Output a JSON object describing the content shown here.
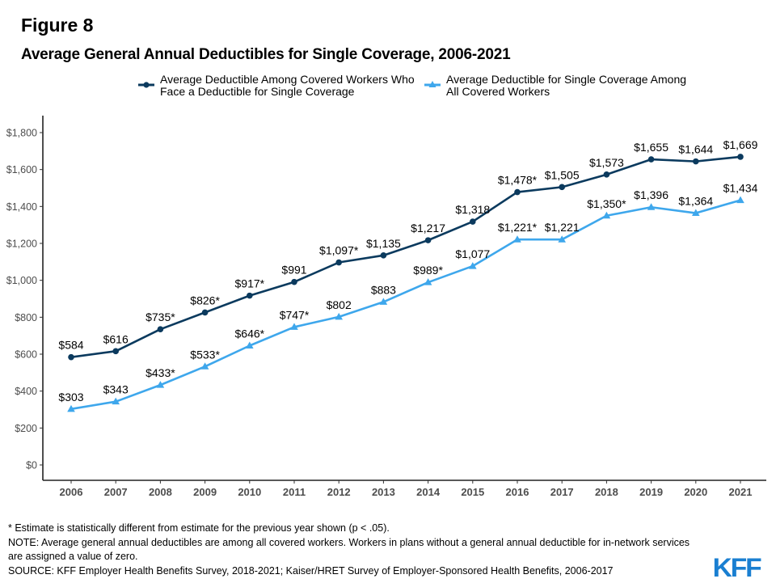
{
  "figure_label": "Figure 8",
  "chart_data": {
    "type": "line",
    "title": "Average General Annual Deductibles for Single Coverage, 2006-2021",
    "xlabel": "",
    "ylabel": "",
    "x": [
      "2006",
      "2007",
      "2008",
      "2009",
      "2010",
      "2011",
      "2012",
      "2013",
      "2014",
      "2015",
      "2016",
      "2017",
      "2018",
      "2019",
      "2020",
      "2021"
    ],
    "ylim": [
      0,
      1800
    ],
    "yticks": [
      0,
      200,
      400,
      600,
      800,
      1000,
      1200,
      1400,
      1600,
      1800
    ],
    "ytick_labels": [
      "$0",
      "$200",
      "$400",
      "$600",
      "$800",
      "$1,000",
      "$1,200",
      "$1,400",
      "$1,600",
      "$1,800"
    ],
    "grid": false,
    "legend_position": "top",
    "series": [
      {
        "name": "Average Deductible Among Covered Workers Who Face a Deductible for Single Coverage",
        "legend_lines": [
          "Average Deductible Among Covered Workers Who",
          "Face a Deductible for Single Coverage"
        ],
        "color": "#0b3a5e",
        "marker": "circle",
        "values": [
          584,
          616,
          735,
          826,
          917,
          991,
          1097,
          1135,
          1217,
          1318,
          1478,
          1505,
          1573,
          1655,
          1644,
          1669
        ],
        "labels": [
          "$584",
          "$616",
          "$735*",
          "$826*",
          "$917*",
          "$991",
          "$1,097*",
          "$1,135",
          "$1,217",
          "$1,318",
          "$1,478*",
          "$1,505",
          "$1,573",
          "$1,655",
          "$1,644",
          "$1,669"
        ]
      },
      {
        "name": "Average Deductible for Single Coverage Among All Covered Workers",
        "legend_lines": [
          "Average Deductible for Single Coverage Among",
          "All Covered Workers"
        ],
        "color": "#3ea7ec",
        "marker": "triangle",
        "values": [
          303,
          343,
          433,
          533,
          646,
          747,
          802,
          883,
          989,
          1077,
          1221,
          1221,
          1350,
          1396,
          1364,
          1434
        ],
        "labels": [
          "$303",
          "$343",
          "$433*",
          "$533*",
          "$646*",
          "$747*",
          "$802",
          "$883",
          "$989*",
          "$1,077",
          "$1,221*",
          "$1,221",
          "$1,350*",
          "$1,396",
          "$1,364",
          "$1,434"
        ]
      }
    ]
  },
  "notes": {
    "significance": "* Estimate is statistically different from estimate for the previous year shown (p < .05).",
    "note_line1": "NOTE: Average general annual deductibles are among all covered workers. Workers in plans without a general annual deductible for in-network services",
    "note_line2": "are assigned a value of zero.",
    "source": "SOURCE: KFF Employer Health Benefits Survey, 2018-2021; Kaiser/HRET Survey of Employer-Sponsored Health Benefits, 2006-2017"
  },
  "logo": "KFF"
}
